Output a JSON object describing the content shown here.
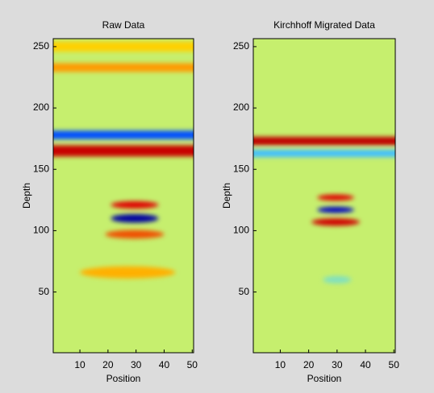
{
  "chart_data": [
    {
      "type": "heatmap",
      "title": "Raw Data",
      "xlabel": "Position",
      "ylabel": "Depth",
      "xlim": [
        0.5,
        50.5
      ],
      "ylim": [
        0.5,
        256.5
      ],
      "xticks": [
        10,
        20,
        30,
        40,
        50
      ],
      "yticks": [
        50,
        100,
        150,
        200,
        250
      ],
      "background": "#c6ef6e",
      "bands": [
        {
          "depth": 250,
          "x0": 0.5,
          "x1": 50.5,
          "thickness": 8,
          "color": "#ffd000"
        },
        {
          "depth": 233,
          "x0": 0.5,
          "x1": 50.5,
          "thickness": 7,
          "color": "#ff9a00"
        },
        {
          "depth": 178,
          "x0": 0.5,
          "x1": 50.5,
          "thickness": 7,
          "color": "#0050ff"
        },
        {
          "depth": 165,
          "x0": 0.5,
          "x1": 50.5,
          "thickness": 9,
          "color": "#c80000"
        },
        {
          "depth": 121,
          "x0": 21,
          "x1": 38,
          "thickness": 6,
          "color": "#e00000"
        },
        {
          "depth": 110,
          "x0": 21,
          "x1": 38,
          "thickness": 7,
          "color": "#0000a0"
        },
        {
          "depth": 97,
          "x0": 19,
          "x1": 40,
          "thickness": 7,
          "color": "#f05000"
        },
        {
          "depth": 66,
          "x0": 10,
          "x1": 44,
          "thickness": 10,
          "color": "#ffb000"
        }
      ]
    },
    {
      "type": "heatmap",
      "title": "Kirchhoff Migrated Data",
      "xlabel": "Position",
      "ylabel": "Depth",
      "xlim": [
        0.5,
        50.5
      ],
      "ylim": [
        0.5,
        256.5
      ],
      "xticks": [
        10,
        20,
        30,
        40,
        50
      ],
      "yticks": [
        50,
        100,
        150,
        200,
        250
      ],
      "background": "#c6ef6e",
      "bands": [
        {
          "depth": 173,
          "x0": 0.5,
          "x1": 50.5,
          "thickness": 7,
          "color": "#c00000"
        },
        {
          "depth": 163,
          "x0": 0.5,
          "x1": 50.5,
          "thickness": 6,
          "color": "#40c0ff"
        },
        {
          "depth": 127,
          "x0": 23,
          "x1": 36,
          "thickness": 5,
          "color": "#e00000"
        },
        {
          "depth": 117,
          "x0": 23,
          "x1": 36,
          "thickness": 5,
          "color": "#0000c0"
        },
        {
          "depth": 107,
          "x0": 21,
          "x1": 38,
          "thickness": 6,
          "color": "#d00000"
        },
        {
          "depth": 60,
          "x0": 25,
          "x1": 35,
          "thickness": 6,
          "color": "#80e0c0"
        }
      ]
    }
  ]
}
